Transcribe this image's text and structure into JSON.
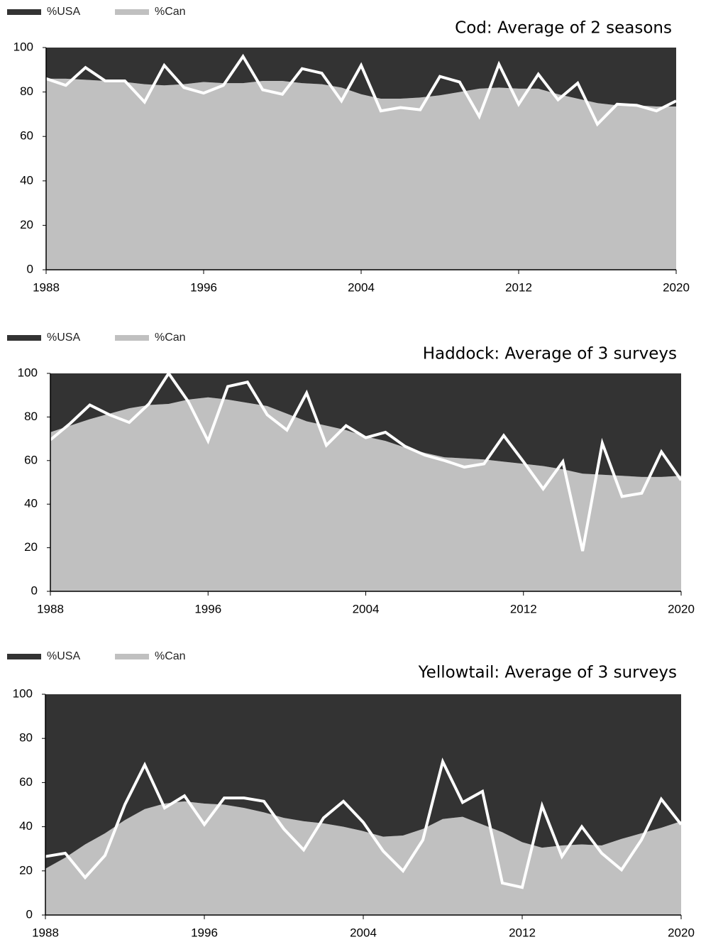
{
  "chart_data": [
    {
      "type": "area",
      "title": "Cod: Average of 2 seasons",
      "x": [
        1988,
        1989,
        1990,
        1991,
        1992,
        1993,
        1994,
        1995,
        1996,
        1997,
        1998,
        1999,
        2000,
        2001,
        2002,
        2003,
        2004,
        2005,
        2006,
        2007,
        2008,
        2009,
        2010,
        2011,
        2012,
        2013,
        2014,
        2015,
        2016,
        2017,
        2018,
        2019,
        2020
      ],
      "xlim": [
        1988,
        2020
      ],
      "xticks": [
        1988,
        1996,
        2004,
        2012,
        2020
      ],
      "ylim": [
        0,
        100
      ],
      "yticks": [
        0,
        20,
        40,
        60,
        80,
        100
      ],
      "stacked": true,
      "series": [
        {
          "name": "%USA",
          "color": "#333333",
          "values": [
            14,
            14,
            14.5,
            15,
            15.5,
            16.5,
            17,
            16.5,
            15.5,
            16,
            16,
            15,
            15,
            16,
            16.5,
            18,
            21,
            23,
            23,
            22.5,
            21.5,
            20,
            18.5,
            18,
            18.5,
            18.5,
            21,
            23,
            25,
            26,
            26,
            26.5,
            26.5
          ]
        },
        {
          "name": "%Can",
          "color": "#c0c0c0",
          "values": [
            86,
            86,
            85.5,
            85,
            84.5,
            83.5,
            83,
            83.5,
            84.5,
            84,
            84,
            85,
            85,
            84,
            83.5,
            82,
            79,
            77,
            77,
            77.5,
            78.5,
            80,
            81.5,
            82,
            81.5,
            81.5,
            79,
            77,
            75,
            74,
            74,
            73.5,
            73.5
          ]
        },
        {
          "type": "line",
          "color": "#ffffff",
          "values": [
            86,
            83,
            91,
            85,
            85,
            75.5,
            92,
            82,
            79.5,
            83,
            96,
            81,
            79,
            90.5,
            88.5,
            76,
            92,
            71.5,
            73,
            72,
            87,
            84.5,
            69,
            92.5,
            74.5,
            88,
            76.5,
            84,
            65.5,
            74.5,
            74,
            71.5,
            76
          ]
        }
      ]
    },
    {
      "type": "area",
      "title": "Haddock: Average of 3 surveys",
      "x": [
        1988,
        1989,
        1990,
        1991,
        1992,
        1993,
        1994,
        1995,
        1996,
        1997,
        1998,
        1999,
        2000,
        2001,
        2002,
        2003,
        2004,
        2005,
        2006,
        2007,
        2008,
        2009,
        2010,
        2011,
        2012,
        2013,
        2014,
        2015,
        2016,
        2017,
        2018,
        2019,
        2020
      ],
      "xlim": [
        1988,
        2020
      ],
      "xticks": [
        1988,
        1996,
        2004,
        2012,
        2020
      ],
      "ylim": [
        0,
        100
      ],
      "yticks": [
        0,
        20,
        40,
        60,
        80,
        100
      ],
      "stacked": true,
      "series": [
        {
          "name": "%USA",
          "color": "#333333",
          "values": [
            27,
            24,
            21,
            18.5,
            16,
            14.5,
            14,
            12,
            11,
            12,
            13.5,
            15,
            18.5,
            22,
            24,
            26,
            29,
            31,
            34,
            36.5,
            38.5,
            39,
            39.5,
            40.5,
            41.5,
            42.5,
            44,
            46,
            46.5,
            47,
            47.5,
            47.5,
            47
          ]
        },
        {
          "name": "%Can",
          "color": "#c0c0c0",
          "values": [
            73,
            76,
            79,
            81.5,
            84,
            85.5,
            86,
            88,
            89,
            88,
            86.5,
            85,
            81.5,
            78,
            76,
            74,
            71,
            69,
            66,
            63.5,
            61.5,
            61,
            60.5,
            59.5,
            58.5,
            57.5,
            56,
            54,
            53.5,
            53,
            52.5,
            52.5,
            53
          ]
        },
        {
          "type": "line",
          "color": "#ffffff",
          "values": [
            69.5,
            77,
            85.5,
            81,
            77.5,
            86,
            100,
            87,
            69,
            94,
            96,
            81,
            74,
            91,
            67,
            76,
            70.5,
            73,
            66.5,
            62.5,
            60,
            57,
            58.5,
            71.5,
            59.5,
            47,
            59.5,
            18.5,
            68,
            43.5,
            45,
            64,
            51
          ]
        }
      ]
    },
    {
      "type": "area",
      "title": "Yellowtail: Average of 3 surveys",
      "x": [
        1988,
        1989,
        1990,
        1991,
        1992,
        1993,
        1994,
        1995,
        1996,
        1997,
        1998,
        1999,
        2000,
        2001,
        2002,
        2003,
        2004,
        2005,
        2006,
        2007,
        2008,
        2009,
        2010,
        2011,
        2012,
        2013,
        2014,
        2015,
        2016,
        2017,
        2018,
        2019,
        2020
      ],
      "xlim": [
        1988,
        2020
      ],
      "xticks": [
        1988,
        1996,
        2004,
        2012,
        2020
      ],
      "ylim": [
        0,
        100
      ],
      "yticks": [
        0,
        20,
        40,
        60,
        80,
        100
      ],
      "stacked": true,
      "series": [
        {
          "name": "%USA",
          "color": "#333333",
          "values": [
            79,
            74,
            68,
            63,
            57,
            52,
            49.5,
            48.5,
            49.5,
            50,
            51.5,
            53.5,
            56,
            57.5,
            58.5,
            60,
            62,
            64.5,
            64,
            61,
            56.5,
            55.5,
            59,
            62.5,
            67,
            69.5,
            68.5,
            68,
            68.5,
            65.5,
            63,
            60.5,
            57.5
          ]
        },
        {
          "name": "%Can",
          "color": "#c0c0c0",
          "values": [
            21,
            26,
            32,
            37,
            43,
            48,
            50.5,
            51.5,
            50.5,
            50,
            48.5,
            46.5,
            44,
            42.5,
            41.5,
            40,
            38,
            35.5,
            36,
            39,
            43.5,
            44.5,
            41,
            37.5,
            33,
            30.5,
            31.5,
            32,
            31.5,
            34.5,
            37,
            39.5,
            42.5
          ]
        },
        {
          "type": "line",
          "color": "#ffffff",
          "values": [
            26.5,
            28,
            17,
            27,
            50,
            68,
            48.5,
            54,
            41,
            53,
            53,
            51.5,
            39,
            29.5,
            44,
            51.5,
            42,
            29,
            20,
            34,
            69.5,
            51,
            56,
            14.5,
            12.5,
            49.5,
            26.5,
            40,
            28,
            20.5,
            34,
            52.5,
            41
          ]
        }
      ]
    }
  ]
}
